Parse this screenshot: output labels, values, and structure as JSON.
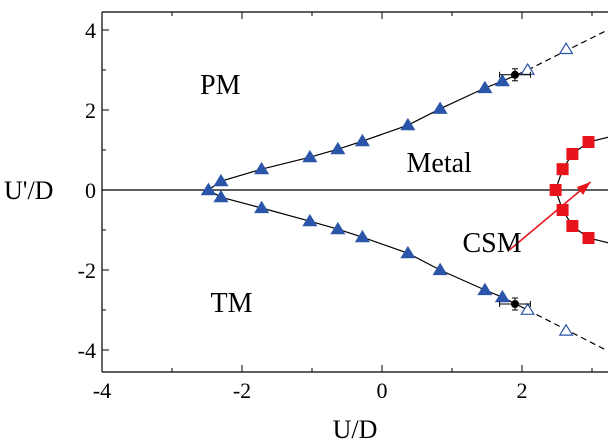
{
  "chart_data": {
    "type": "scatter",
    "xlabel": "U/D",
    "ylabel": "U'/D",
    "xlim": [
      -4,
      3
    ],
    "ylim": [
      -4.5,
      4.5
    ],
    "x_ticks": [
      "-4",
      "-2",
      "0",
      "2"
    ],
    "x_tick_values": [
      -4,
      -2,
      0,
      2
    ],
    "y_ticks": [
      "4",
      "2",
      "0",
      "-2",
      "-4"
    ],
    "y_tick_values": [
      4,
      2,
      0,
      -2,
      -4
    ],
    "grid": false,
    "colors": {
      "triangle": "#2b55a8",
      "square": "#e8141c",
      "arrow": "#e8141c",
      "line": "#000000",
      "dot": "#000000"
    },
    "annotations": [
      {
        "text": "PM",
        "x": -2.6,
        "y": 2.4
      },
      {
        "text": "Metal",
        "x": 0.35,
        "y": 0.45
      },
      {
        "text": "CSM",
        "x": 1.15,
        "y": -1.55
      },
      {
        "text": "TM",
        "x": -2.45,
        "y": -3.05
      }
    ],
    "series": [
      {
        "marker": "filled-triangle",
        "values_upper": [
          [
            -2.48,
            0.0
          ],
          [
            -2.3,
            0.22
          ],
          [
            -1.72,
            0.52
          ],
          [
            -1.03,
            0.82
          ],
          [
            -0.63,
            1.02
          ],
          [
            -0.28,
            1.22
          ],
          [
            0.37,
            1.62
          ],
          [
            0.83,
            2.03
          ],
          [
            1.47,
            2.55
          ],
          [
            1.72,
            2.72
          ]
        ],
        "values_lower": [
          [
            -2.48,
            0.0
          ],
          [
            -2.3,
            -0.18
          ],
          [
            -1.72,
            -0.45
          ],
          [
            -1.03,
            -0.78
          ],
          [
            -0.63,
            -0.98
          ],
          [
            -0.28,
            -1.18
          ],
          [
            0.37,
            -1.58
          ],
          [
            0.83,
            -2.0
          ],
          [
            1.47,
            -2.5
          ],
          [
            1.72,
            -2.68
          ]
        ]
      },
      {
        "marker": "open-triangle",
        "values_upper": [
          [
            2.08,
            3.0
          ],
          [
            2.63,
            3.52
          ]
        ],
        "values_lower": [
          [
            2.08,
            -3.0
          ],
          [
            2.63,
            -3.52
          ]
        ],
        "dashed_extension_upper": [
          [
            2.08,
            3.0
          ],
          [
            3.2,
            3.98
          ]
        ],
        "dashed_extension_lower": [
          [
            2.08,
            -3.0
          ],
          [
            3.2,
            -4.0
          ]
        ]
      },
      {
        "marker": "filled-circle-errorbar",
        "values": [
          [
            1.9,
            2.88
          ],
          [
            1.9,
            -2.85
          ]
        ],
        "xerr": 0.22,
        "yerr": 0.15
      },
      {
        "marker": "filled-square",
        "values": [
          [
            2.48,
            0.0
          ],
          [
            2.58,
            0.52
          ],
          [
            2.72,
            0.9
          ],
          [
            2.95,
            1.2
          ],
          [
            2.58,
            -0.5
          ],
          [
            2.72,
            -0.9
          ],
          [
            2.95,
            -1.2
          ]
        ]
      }
    ],
    "arrow": {
      "from": [
        1.82,
        -1.5
      ],
      "to": [
        2.98,
        0.2
      ]
    }
  }
}
